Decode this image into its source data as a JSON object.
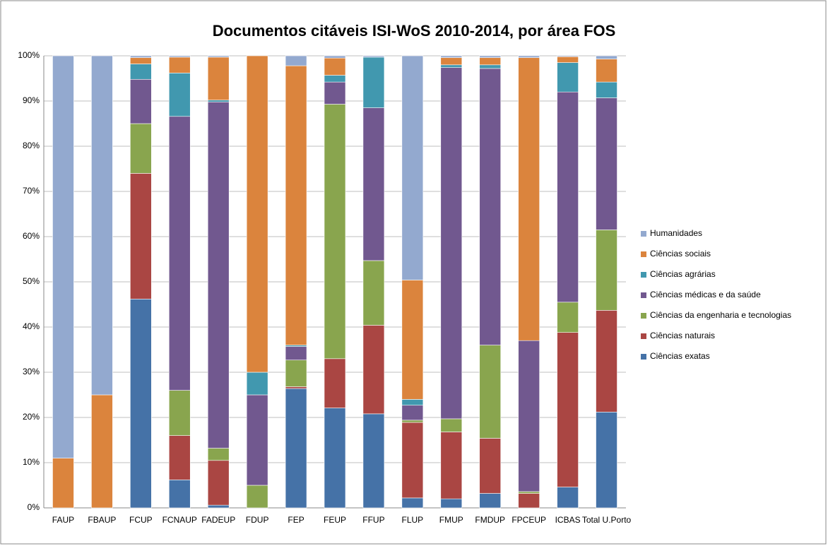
{
  "chart_data": {
    "type": "stacked_bar",
    "title": "Documentos citáveis ISI-WoS 2010-2014, por área FOS",
    "categories": [
      "FAUP",
      "FBAUP",
      "FCUP",
      "FCNAUP",
      "FADEUP",
      "FDUP",
      "FEP",
      "FEUP",
      "FFUP",
      "FLUP",
      "FMUP",
      "FMDUP",
      "FPCEUP",
      "ICBAS",
      "Total U.Porto"
    ],
    "series": [
      {
        "name": "Ciências exatas",
        "color": "#4572a7",
        "values": [
          0,
          0,
          46.2,
          6.2,
          0.6,
          0,
          26.4,
          22.1,
          20.8,
          2.2,
          2,
          3.2,
          0,
          4.6,
          21.2
        ]
      },
      {
        "name": "Ciências naturais",
        "color": "#aa4643",
        "values": [
          0,
          0,
          27.8,
          9.8,
          9.9,
          0,
          0.4,
          10.9,
          19.6,
          16.7,
          14.8,
          12.2,
          3.2,
          34.2,
          22.5
        ]
      },
      {
        "name": "Ciências da engenharia e tecnologias",
        "color": "#89a54e",
        "values": [
          0,
          0,
          11,
          10,
          2.7,
          5,
          5.9,
          56.3,
          14.3,
          0.5,
          2.9,
          20.6,
          0.4,
          6.7,
          17.8
        ]
      },
      {
        "name": "Ciências médicas e da saúde",
        "color": "#71588f",
        "values": [
          0,
          0,
          9.8,
          60.6,
          76.6,
          20,
          3,
          4.9,
          33.8,
          3.3,
          77.7,
          61.2,
          33.4,
          46.5,
          29.2
        ]
      },
      {
        "name": "Ciências agrárias",
        "color": "#4198af",
        "values": [
          0,
          0,
          3.4,
          9.6,
          0.4,
          5,
          0.3,
          1.5,
          11.2,
          1.3,
          0.6,
          0.8,
          0,
          6.5,
          3.5
        ]
      },
      {
        "name": "Ciências sociais",
        "color": "#db843d",
        "values": [
          11,
          25,
          1.4,
          3.5,
          9.5,
          70,
          61.8,
          3.8,
          0,
          26.4,
          1.6,
          1.6,
          62.6,
          1.3,
          5.1
        ]
      },
      {
        "name": "Humanidades",
        "color": "#93a9cf",
        "values": [
          89,
          75,
          0.4,
          0.3,
          0.3,
          0,
          2.2,
          0.5,
          0.3,
          49.6,
          0.4,
          0.4,
          0.4,
          0.2,
          0.7
        ]
      }
    ],
    "ylim": [
      0,
      100
    ],
    "yticks": [
      {
        "value": 0,
        "label": "0%"
      },
      {
        "value": 10,
        "label": "10%"
      },
      {
        "value": 20,
        "label": "20%"
      },
      {
        "value": 30,
        "label": "30%"
      },
      {
        "value": 40,
        "label": "40%"
      },
      {
        "value": 50,
        "label": "50%"
      },
      {
        "value": 60,
        "label": "60%"
      },
      {
        "value": 70,
        "label": "70%"
      },
      {
        "value": 80,
        "label": "80%"
      },
      {
        "value": 90,
        "label": "90%"
      },
      {
        "value": 100,
        "label": "100%"
      }
    ],
    "grid": true,
    "legend": "right"
  }
}
